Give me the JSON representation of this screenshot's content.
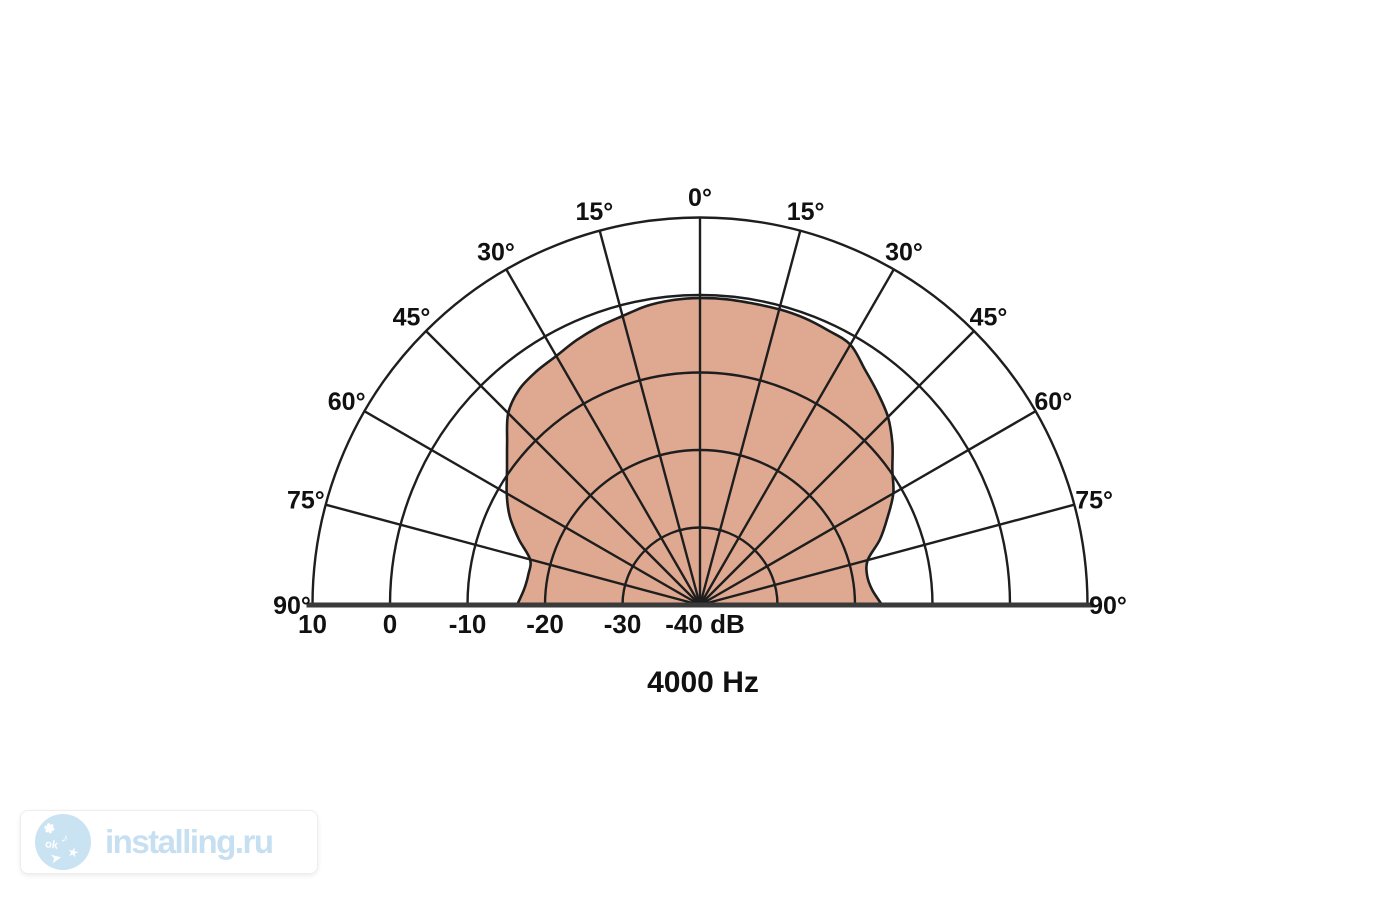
{
  "chart_data": {
    "type": "polar",
    "subtype": "loudspeaker-directivity-half-polar",
    "title": "4000 Hz",
    "grid": true,
    "mirrored_left_right": true,
    "angle_step_deg": 15,
    "angle_ticks_deg": [
      0,
      15,
      30,
      45,
      60,
      75,
      90
    ],
    "angle_tick_labels": [
      "0°",
      "15°",
      "30°",
      "45°",
      "60°",
      "75°",
      "90°"
    ],
    "radial_axis": {
      "unit": "dB",
      "range": [
        -40,
        10
      ],
      "ticks_db": [
        10,
        0,
        -10,
        -20,
        -30,
        -40
      ],
      "tick_labels": [
        "10",
        "0",
        "-10",
        "-20",
        "-30",
        "-40 dB"
      ]
    },
    "colors": {
      "fill": "#dfa991",
      "grid_line": "#1e1e1e",
      "baseline": "#3a3a3a",
      "label_text": "#111111"
    },
    "pattern_points_deg_db": [
      [
        -90,
        -16.4
      ],
      [
        -85,
        -17.2
      ],
      [
        -80,
        -17.5
      ],
      [
        -75,
        -17.3
      ],
      [
        -70,
        -15.1
      ],
      [
        -65,
        -12.9
      ],
      [
        -60,
        -11.2
      ],
      [
        -55,
        -9.6
      ],
      [
        -50,
        -7.5
      ],
      [
        -45,
        -5.0
      ],
      [
        -40,
        -3.7
      ],
      [
        -35,
        -3.2
      ],
      [
        -30,
        -2.9
      ],
      [
        -25,
        -2.3
      ],
      [
        -20,
        -1.8
      ],
      [
        -15,
        -1.4
      ],
      [
        -10,
        -0.8
      ],
      [
        -5,
        -0.5
      ],
      [
        0,
        -0.4
      ],
      [
        5,
        -0.4
      ],
      [
        10,
        -0.5
      ],
      [
        15,
        -0.5
      ],
      [
        20,
        -0.6
      ],
      [
        25,
        -0.9
      ],
      [
        30,
        -1.2
      ],
      [
        35,
        -2.9
      ],
      [
        40,
        -4.3
      ],
      [
        45,
        -5.7
      ],
      [
        50,
        -7.6
      ],
      [
        55,
        -9.7
      ],
      [
        60,
        -11.2
      ],
      [
        65,
        -13.3
      ],
      [
        70,
        -15.3
      ],
      [
        75,
        -17.6
      ],
      [
        80,
        -18.1
      ],
      [
        85,
        -17.7
      ],
      [
        90,
        -16.5
      ]
    ]
  },
  "watermark": {
    "text": "installing.ru",
    "text_color": "#c6dff1",
    "badge_color": "#c9e3f3",
    "badge_glyphs": [
      "✽",
      "ok",
      "♪",
      "➤",
      "★"
    ]
  }
}
